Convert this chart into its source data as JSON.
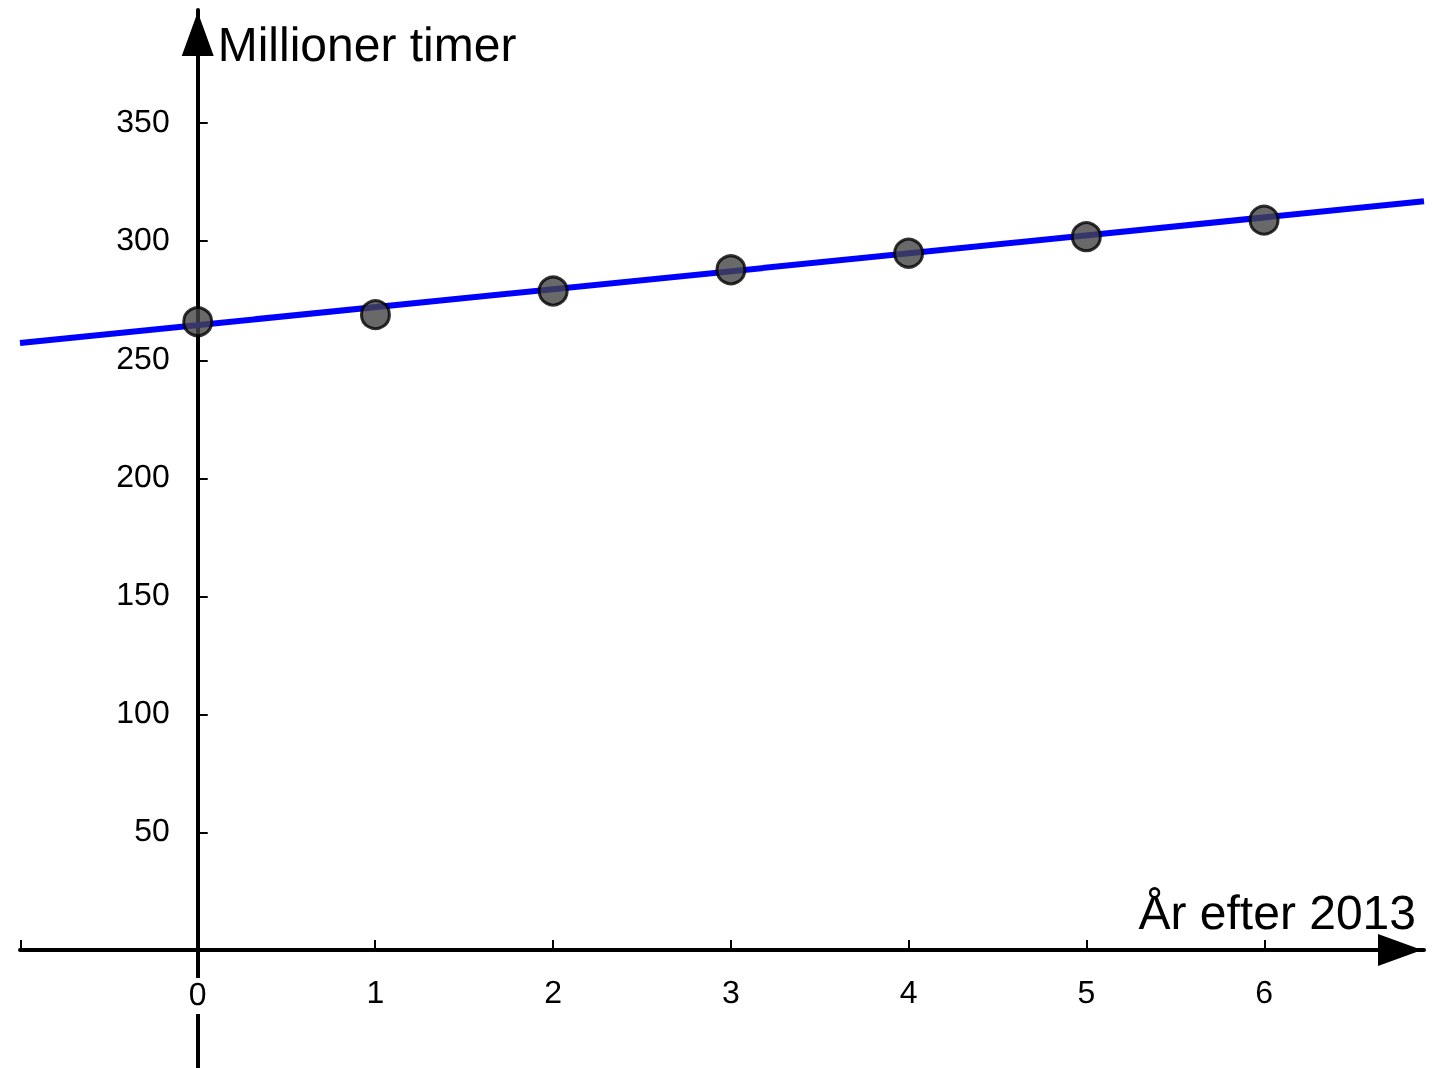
{
  "chart_data": {
    "type": "scatter",
    "xlabel": "År efter 2013",
    "ylabel": "Millioner timer",
    "xlim": [
      -1,
      6.9
    ],
    "ylim": [
      -50,
      398
    ],
    "xticks": [
      {
        "value": -1,
        "label": null
      },
      0,
      1,
      2,
      3,
      4,
      5,
      6
    ],
    "yticks": [
      {
        "value": 0,
        "label": null
      },
      50,
      100,
      150,
      200,
      250,
      300,
      350
    ],
    "series": [
      {
        "color": "#444444",
        "marker": "circle",
        "x": [
          0,
          1,
          2,
          3,
          4,
          5,
          6
        ],
        "values": [
          266,
          269,
          279,
          288,
          295,
          302,
          309
        ]
      },
      {
        "type": "line",
        "color": "#0000ff",
        "x": [
          -1,
          6.9
        ],
        "values": [
          257,
          317
        ]
      }
    ]
  }
}
